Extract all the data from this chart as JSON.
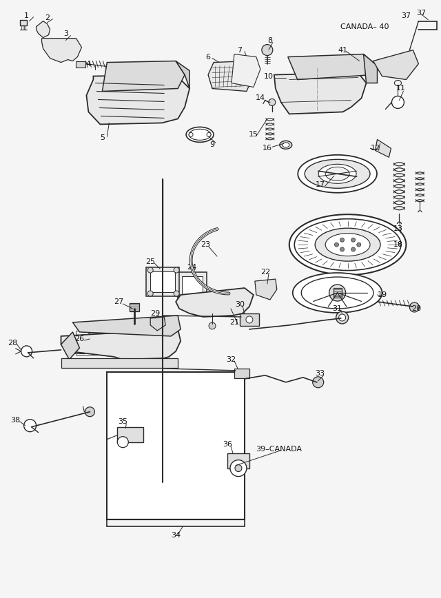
{
  "bg_color": "#f5f5f5",
  "line_color": "#2a2a2a",
  "text_color": "#111111",
  "fig_width": 6.4,
  "fig_height": 8.68,
  "dpi": 100
}
